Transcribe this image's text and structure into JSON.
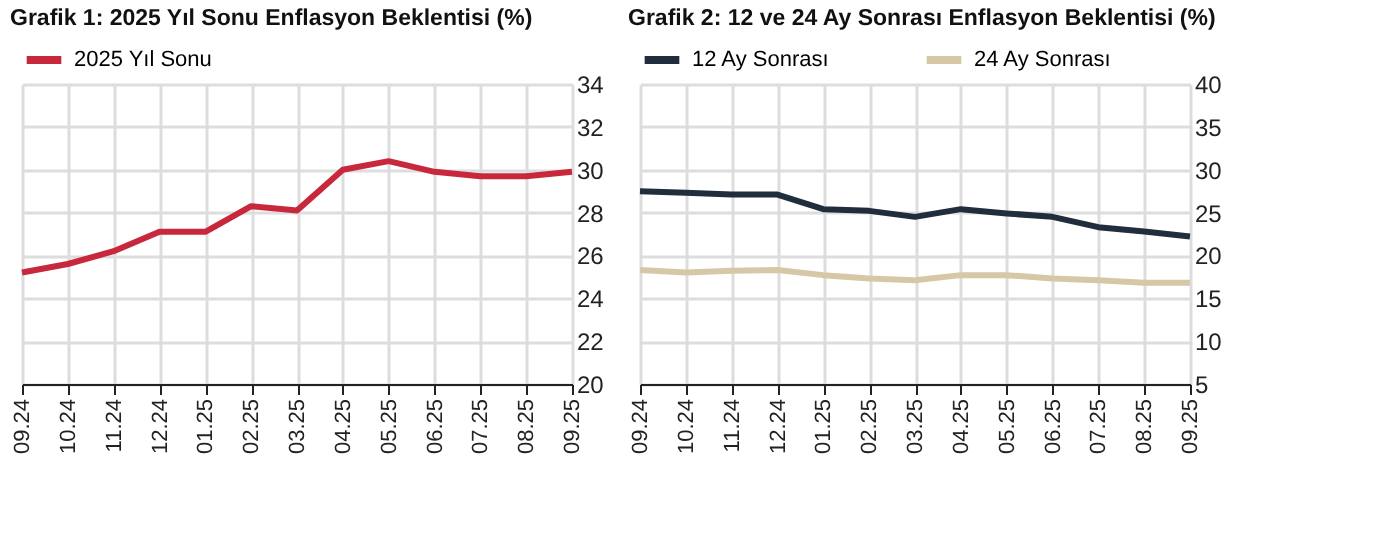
{
  "chart_data": [
    {
      "type": "line",
      "title": "Grafik 1: 2025 Yıl Sonu Enflasyon Beklentisi (%)",
      "categories": [
        "09.24",
        "10.24",
        "11.24",
        "12.24",
        "01.25",
        "02.25",
        "03.25",
        "04.25",
        "05.25",
        "06.25",
        "07.25",
        "08.25",
        "09.25"
      ],
      "series": [
        {
          "name": "2025 Yıl Sonu",
          "color": "#c8283c",
          "values": [
            25.2,
            25.6,
            26.2,
            27.1,
            27.1,
            28.3,
            28.1,
            30.0,
            30.4,
            29.9,
            29.7,
            29.7,
            29.9
          ]
        }
      ],
      "ylim": [
        20,
        34
      ],
      "yticks": [
        20,
        22,
        24,
        26,
        28,
        30,
        32,
        34
      ],
      "grid": true,
      "legend": "top",
      "marker": "none",
      "line_style": "solid"
    },
    {
      "type": "line",
      "title": "Grafik 2: 12 ve 24 Ay Sonrası Enflasyon Beklentisi (%)",
      "categories": [
        "09.24",
        "10.24",
        "11.24",
        "12.24",
        "01.25",
        "02.25",
        "03.25",
        "04.25",
        "05.25",
        "06.25",
        "07.25",
        "08.25",
        "09.25"
      ],
      "series": [
        {
          "name": "12 Ay Sonrası",
          "color": "#1f2d3d",
          "values": [
            27.5,
            27.3,
            27.1,
            27.1,
            25.4,
            25.2,
            24.5,
            25.4,
            24.9,
            24.5,
            23.3,
            22.8,
            22.2
          ]
        },
        {
          "name": "24 Ay Sonrası",
          "color": "#d6c8a6",
          "values": [
            18.3,
            18.0,
            18.2,
            18.3,
            17.7,
            17.3,
            17.1,
            17.7,
            17.7,
            17.3,
            17.1,
            16.8,
            16.8
          ]
        }
      ],
      "ylim": [
        5,
        40
      ],
      "yticks": [
        5,
        10,
        15,
        20,
        25,
        30,
        35,
        40
      ],
      "grid": true,
      "legend": "top",
      "marker": "none",
      "line_style": "solid"
    }
  ]
}
